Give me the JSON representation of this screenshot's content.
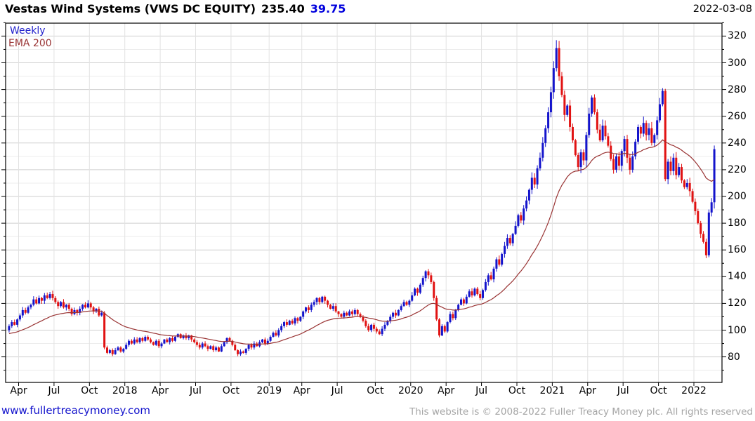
{
  "header": {
    "title_main": "Vestas Wind Systems (VWS DC EQUITY)",
    "title_price": "235.40",
    "title_change": "39.75",
    "date": "2022-03-08"
  },
  "legend": {
    "series1": "Weekly",
    "series2": "EMA 200"
  },
  "footer": {
    "site_link": "www.fullertreacymoney.com",
    "copyright": "This website is © 2008-2022 Fuller Treacy Money plc. All rights reserved"
  },
  "colors": {
    "up": "#1414cc",
    "down": "#e11212",
    "ema": "#993333",
    "frame": "#000000",
    "grid_minor": "#ececec",
    "grid_major": "#cfcfcf",
    "grid_vertical": "#e2e2e2"
  },
  "chart_data": {
    "type": "candlestick",
    "title": "Vestas Wind Systems (VWS DC EQUITY)",
    "interval": "Weekly",
    "overlay": "EMA 200",
    "last_price": 235.4,
    "change": 39.75,
    "as_of": "2022-03-08",
    "start_week": "2017-03-06",
    "y_axis": {
      "label_min": 80,
      "label_max": 320,
      "tick_step": 20,
      "minor_step": 10,
      "side": "right"
    },
    "x_tick_labels": [
      "Apr",
      "Jul",
      "Oct",
      "2018",
      "Apr",
      "Jul",
      "Oct",
      "2019",
      "Apr",
      "Jul",
      "Oct",
      "2020",
      "Apr",
      "Jul",
      "Oct",
      "2021",
      "Apr",
      "Jul",
      "Oct",
      "2022"
    ],
    "ema": {
      "label": "EMA 200",
      "period_weeks": 34,
      "seed": 97
    },
    "first_open": 100,
    "weekly_closes": [
      103,
      106,
      104,
      108,
      111,
      115,
      113,
      117,
      119,
      123,
      120,
      124,
      122,
      126,
      124,
      127,
      124,
      121,
      118,
      121,
      117,
      119,
      116,
      112,
      115,
      113,
      116,
      119,
      117,
      120,
      117,
      114,
      116,
      111,
      113,
      87,
      83,
      85,
      82,
      85,
      87,
      84,
      86,
      89,
      92,
      90,
      93,
      91,
      94,
      92,
      95,
      93,
      91,
      89,
      92,
      88,
      90,
      93,
      91,
      94,
      92,
      95,
      97,
      94,
      96,
      94,
      96,
      93,
      91,
      89,
      87,
      90,
      88,
      86,
      88,
      85,
      87,
      84,
      88,
      91,
      94,
      92,
      89,
      85,
      82,
      84,
      83,
      86,
      89,
      87,
      90,
      88,
      91,
      93,
      90,
      92,
      95,
      98,
      96,
      100,
      103,
      106,
      104,
      107,
      105,
      109,
      107,
      110,
      114,
      117,
      115,
      119,
      121,
      124,
      121,
      125,
      122,
      119,
      116,
      118,
      114,
      112,
      110,
      113,
      111,
      114,
      112,
      115,
      112,
      110,
      107,
      103,
      100,
      104,
      101,
      99,
      97,
      101,
      104,
      107,
      110,
      113,
      111,
      115,
      118,
      121,
      119,
      122,
      126,
      131,
      128,
      134,
      139,
      144,
      141,
      136,
      124,
      108,
      96,
      103,
      99,
      106,
      112,
      109,
      115,
      119,
      123,
      120,
      125,
      129,
      126,
      131,
      127,
      124,
      130,
      136,
      141,
      138,
      146,
      153,
      149,
      157,
      163,
      169,
      165,
      172,
      178,
      186,
      182,
      191,
      197,
      205,
      214,
      209,
      221,
      229,
      240,
      251,
      263,
      278,
      296,
      311,
      290,
      276,
      261,
      268,
      252,
      242,
      231,
      222,
      233,
      227,
      246,
      262,
      274,
      263,
      250,
      242,
      253,
      245,
      238,
      228,
      220,
      230,
      223,
      234,
      243,
      229,
      220,
      230,
      241,
      252,
      247,
      255,
      246,
      251,
      240,
      246,
      257,
      269,
      279,
      213,
      226,
      219,
      229,
      216,
      222,
      212,
      207,
      210,
      204,
      196,
      189,
      180,
      172,
      166,
      156,
      188,
      195.65,
      235.4
    ]
  }
}
